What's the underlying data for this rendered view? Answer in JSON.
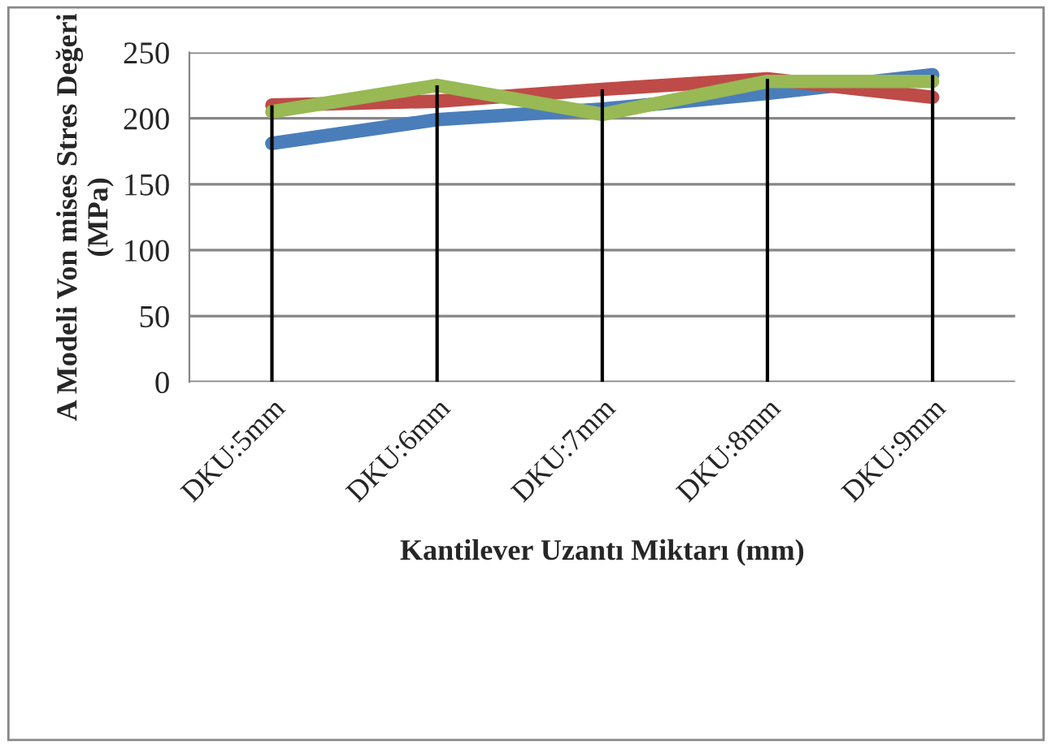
{
  "chart_data": {
    "type": "line",
    "xlabel": "Kantilever Uzantı Miktarı (mm)",
    "ylabel": "A Modeli Von mises Stres Değeri (MPa)",
    "categories": [
      "DKU:5mm",
      "DKU:6mm",
      "DKU:7mm",
      "DKU:8mm",
      "DKU:9mm"
    ],
    "series": [
      {
        "color": "#4a7ebb",
        "values": [
          181,
          199,
          207,
          219,
          233
        ]
      },
      {
        "color": "#be4b48",
        "values": [
          210,
          213,
          222,
          230,
          216
        ]
      },
      {
        "color": "#98b954",
        "values": [
          205,
          225,
          203,
          228,
          228
        ]
      }
    ],
    "ylim": [
      0,
      250
    ],
    "yticks": [
      0,
      50,
      100,
      150,
      200,
      250
    ],
    "grid": "y",
    "legend": false,
    "marker": "none",
    "line_style": "solid"
  }
}
